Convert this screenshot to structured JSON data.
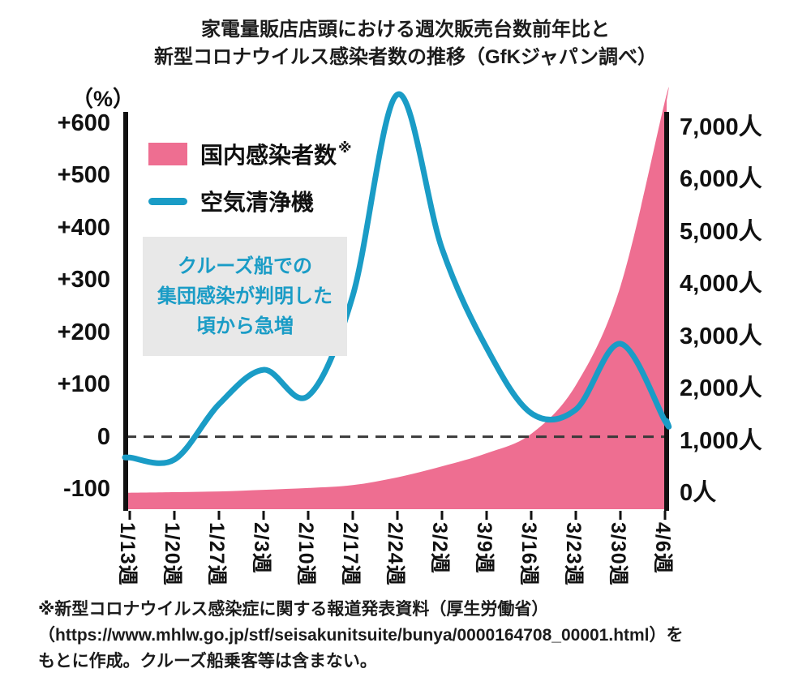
{
  "title": {
    "line1": "家電量販店店頭における週次販売台数前年比と",
    "line2": "新型コロナウイルス感染者数の推移（GfKジャパン調べ）"
  },
  "left_axis": {
    "unit": "（%）",
    "ticks": [
      "+600",
      "+500",
      "+400",
      "+300",
      "+200",
      "+100",
      "0",
      "-100"
    ]
  },
  "right_axis": {
    "ticks": [
      "7,000人",
      "6,000人",
      "5,000人",
      "4,000人",
      "3,000人",
      "2,000人",
      "1,000人",
      "0人"
    ]
  },
  "legend": {
    "items": [
      {
        "label": "国内感染者数",
        "superscript": "※",
        "color": "#EE6E91",
        "type": "area"
      },
      {
        "label": "空気清浄機",
        "color": "#1A9CC6",
        "type": "line"
      }
    ]
  },
  "annotation": {
    "bg": "#E8E8E8",
    "color": "#1A9CC6",
    "lines": [
      "クルーズ船での",
      "集団感染が判明した",
      "頃から急増"
    ]
  },
  "footnote": {
    "lines": [
      "※新型コロナウイルス感染症に関する報道発表資料（厚生労働省）",
      "（https://www.mhlw.go.jp/stf/seisakunitsuite/bunya/0000164708_00001.html）を",
      "もとに作成。クルーズ船乗客等は含まない。"
    ]
  },
  "chart_data": {
    "type": "combo",
    "categories": [
      "1/13週",
      "1/20週",
      "1/27週",
      "2/3週",
      "2/10週",
      "2/17週",
      "2/24週",
      "3/2週",
      "3/9週",
      "3/16週",
      "3/23週",
      "3/30週",
      "4/6週"
    ],
    "series": [
      {
        "name": "国内感染者数",
        "type": "area",
        "axis": "right",
        "color": "#EE6E91",
        "values": [
          5,
          15,
          30,
          60,
          95,
          150,
          300,
          510,
          760,
          1130,
          2060,
          3950,
          7500
        ]
      },
      {
        "name": "空気清浄機",
        "type": "line",
        "axis": "left",
        "color": "#1A9CC6",
        "values": [
          -40,
          -44,
          62,
          128,
          78,
          270,
          655,
          360,
          170,
          45,
          52,
          178,
          30
        ]
      }
    ],
    "left_axis": {
      "label": "（%）",
      "unit": "%",
      "min": -100,
      "max": 600,
      "tick_step": 100
    },
    "right_axis": {
      "unit": "人",
      "min": 0,
      "max": 7000,
      "tick_step": 1000
    },
    "zero_line": {
      "axis": "left",
      "value": 0,
      "style": "dashed",
      "color": "#3A3A3A"
    },
    "grid": false,
    "legend_position": "top-left-inside"
  }
}
